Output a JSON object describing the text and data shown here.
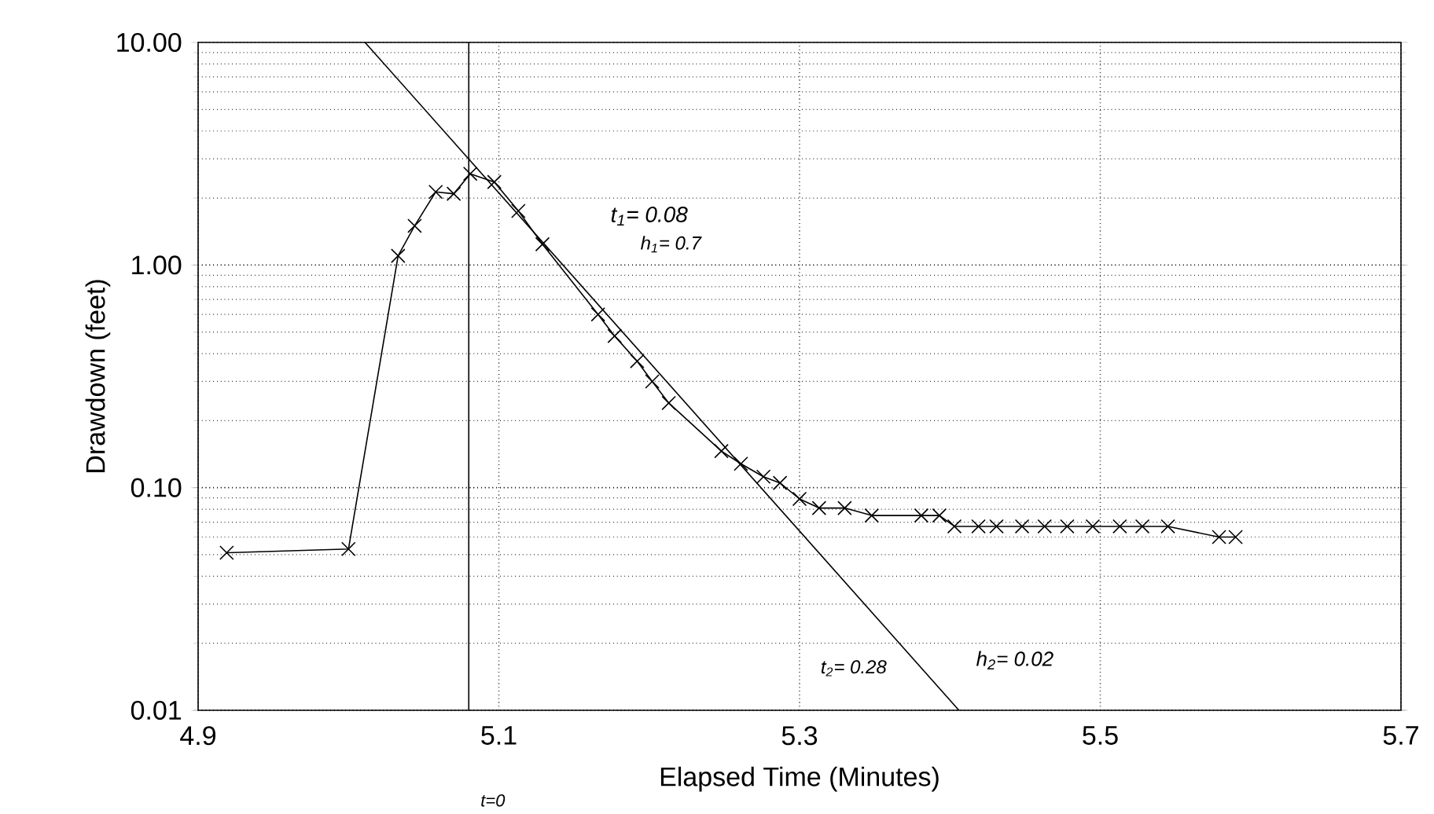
{
  "chart_data": {
    "type": "line",
    "xlabel": "Elapsed Time (Minutes)",
    "ylabel": "Drawdown (feet)",
    "log": "y",
    "xlim": [
      4.9,
      5.7
    ],
    "xticks": [
      4.9,
      5.1,
      5.3,
      5.5,
      5.7
    ],
    "ylim": [
      0.01,
      10
    ],
    "yticks": [
      {
        "value": 0.01,
        "label": "0.01"
      },
      {
        "value": 0.1,
        "label": "0.10"
      },
      {
        "value": 1,
        "label": "1.00"
      },
      {
        "value": 10,
        "label": "10.00"
      }
    ],
    "grid": true,
    "marker": "cross",
    "line_style": "solid",
    "series": [
      {
        "color": "#000000",
        "x": [
          4.919,
          5.0,
          5.033,
          5.044,
          5.058,
          5.07,
          5.081,
          5.097,
          5.113,
          5.129,
          5.166,
          5.177,
          5.192,
          5.202,
          5.213,
          5.248,
          5.261,
          5.276,
          5.287,
          5.3,
          5.313,
          5.33,
          5.348,
          5.381,
          5.393,
          5.403,
          5.419,
          5.431,
          5.448,
          5.463,
          5.478,
          5.495,
          5.513,
          5.528,
          5.545,
          5.579,
          5.59
        ],
        "values": [
          0.051,
          0.053,
          1.1,
          1.5,
          2.13,
          2.09,
          2.57,
          2.36,
          1.75,
          1.24,
          0.6,
          0.48,
          0.37,
          0.3,
          0.24,
          0.146,
          0.128,
          0.112,
          0.105,
          0.089,
          0.081,
          0.081,
          0.075,
          0.075,
          0.075,
          0.067,
          0.067,
          0.067,
          0.067,
          0.067,
          0.067,
          0.067,
          0.067,
          0.067,
          0.067,
          0.06,
          0.06
        ]
      },
      {
        "type": "line",
        "marker": "none",
        "color": "#000000",
        "x": [
          5.011,
          5.406
        ],
        "values": [
          10,
          0.01
        ]
      }
    ],
    "ref_lines": [
      {
        "axis": "x",
        "value": 5.08,
        "color": "#000000"
      }
    ],
    "annotations": [
      "t$_{1}$= 0.08",
      "h$_{1}$= 0.7",
      "t$_{2}$= 0.28",
      "h$_{2}$= 0.02",
      "t=0"
    ]
  }
}
